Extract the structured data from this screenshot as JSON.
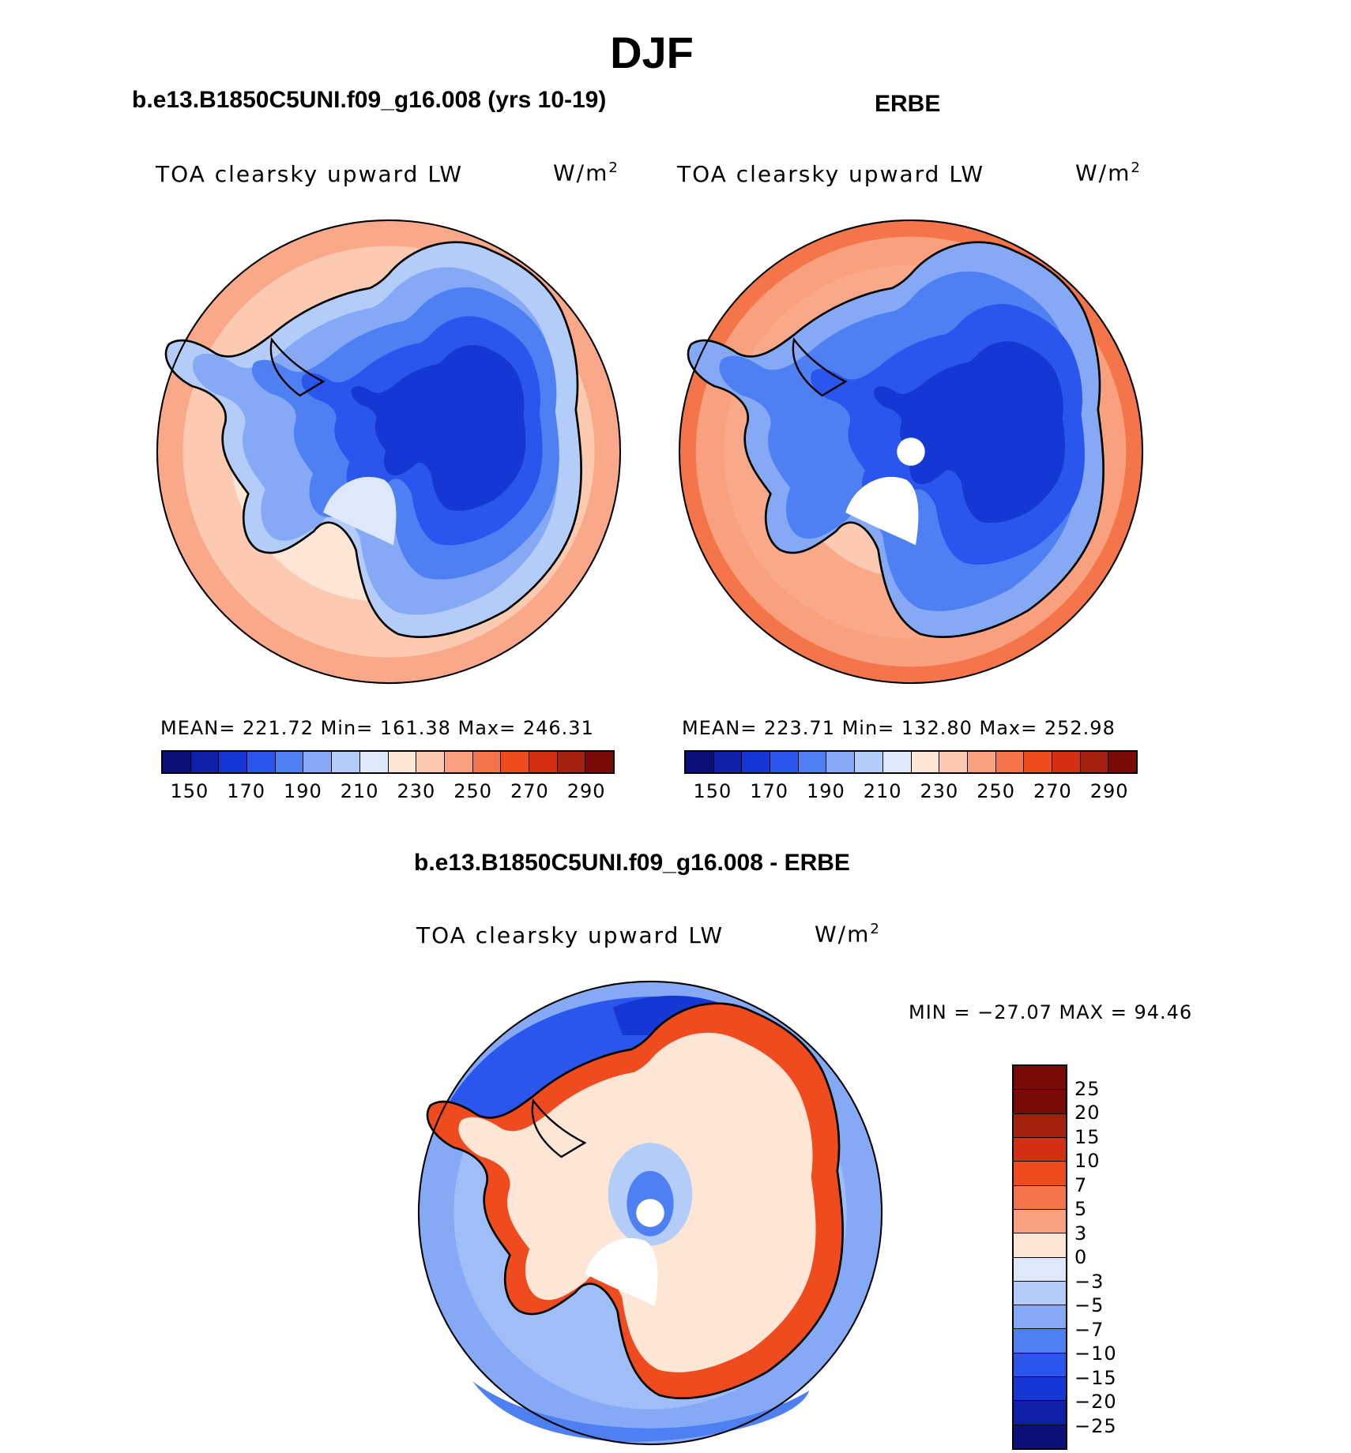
{
  "title": "DJF",
  "panels": [
    {
      "title": "b.e13.B1850C5UNI.f09_g16.008 (yrs 10-19)",
      "variable": "TOA clearsky upward LW",
      "units": "W/m",
      "units_exp": "2",
      "stats": "MEAN= 221.72   Min= 161.38   Max= 246.31",
      "colorbar_labels": [
        "150",
        "170",
        "190",
        "210",
        "230",
        "250",
        "270",
        "290"
      ]
    },
    {
      "title": "ERBE",
      "variable": "TOA clearsky upward LW",
      "units": "W/m",
      "units_exp": "2",
      "stats": "MEAN= 223.71   Min= 132.80   Max= 252.98",
      "colorbar_labels": [
        "150",
        "170",
        "190",
        "210",
        "230",
        "250",
        "270",
        "290"
      ]
    },
    {
      "title": "b.e13.B1850C5UNI.f09_g16.008 - ERBE",
      "variable": "TOA clearsky upward LW",
      "units": "W/m",
      "units_exp": "2",
      "stats": "MIN = −27.07 MAX =   94.46",
      "colorbar_labels": [
        "25",
        "20",
        "15",
        "10",
        "7",
        "5",
        "3",
        "0",
        "−3",
        "−5",
        "−7",
        "−10",
        "−15",
        "−20",
        "−25"
      ]
    }
  ],
  "colors": {
    "abs_scale": [
      "#0b0f7a",
      "#0e1fa8",
      "#1537d4",
      "#2a56ee",
      "#4e7ff3",
      "#86a9f5",
      "#b4ccf8",
      "#dde8fb",
      "#fde6d6",
      "#fccab0",
      "#f9a07e",
      "#f47549",
      "#ef4b1f",
      "#d42f12",
      "#a3210e",
      "#7a0a05"
    ],
    "diff_scale": [
      "#7a0a05",
      "#a3210e",
      "#d42f12",
      "#ef4b1f",
      "#f47549",
      "#f9a07e",
      "#fde6d6",
      "#dde8fb",
      "#b4ccf8",
      "#86a9f5",
      "#4e7ff3",
      "#2a56ee",
      "#1537d4",
      "#0e1fa8",
      "#0b0f7a"
    ]
  }
}
